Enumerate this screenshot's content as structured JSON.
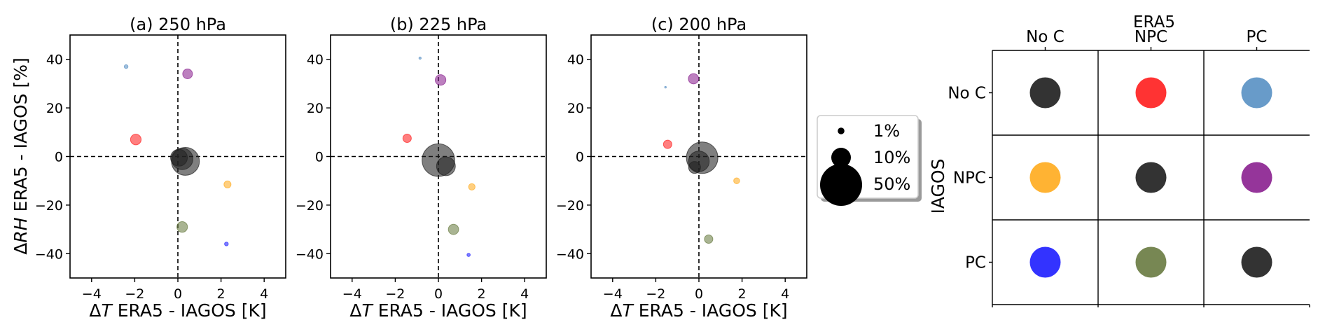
{
  "figure": {
    "ylabel_prefix": "Δ",
    "ylabel_var": "RH",
    "ylabel_rest": " ERA5 - IAGOS [%]",
    "xlabel_prefix": "Δ",
    "xlabel_var": "T",
    "xlabel_rest": " ERA5 - IAGOS [K]"
  },
  "legend": {
    "entries": [
      {
        "label": "1%",
        "percent": 1
      },
      {
        "label": "10%",
        "percent": 10
      },
      {
        "label": "50%",
        "percent": 50
      }
    ]
  },
  "matrix": {
    "top_title": "ERA5",
    "side_title": "IAGOS",
    "cols": [
      "No C",
      "NPC",
      "PC"
    ],
    "rows": [
      "No C",
      "NPC",
      "PC"
    ],
    "colors": [
      [
        "#222222",
        "#ff2222",
        "#5b92c4"
      ],
      [
        "#ffad22",
        "#222222",
        "#8c2491"
      ],
      [
        "#2222ff",
        "#6b7d44",
        "#222222"
      ]
    ]
  },
  "chart_data": [
    {
      "type": "scatter",
      "title": "(a) 250 hPa",
      "xlim": [
        -5,
        5
      ],
      "ylim": [
        -50,
        50
      ],
      "xticks": [
        -4,
        -2,
        0,
        2,
        4
      ],
      "yticks": [
        -40,
        -20,
        0,
        20,
        40
      ],
      "xtick_labels": [
        "−4",
        "−2",
        "0",
        "2",
        "4"
      ],
      "ytick_labels": [
        "−40",
        "−20",
        "0",
        "20",
        "40"
      ],
      "points": [
        {
          "x": -2.4,
          "y": 37,
          "percent": 0.4,
          "color": "#5b92c4",
          "cat": "IAGOS No C / ERA5 PC"
        },
        {
          "x": 0.45,
          "y": 34,
          "percent": 2.7,
          "color": "#8c2491",
          "cat": "IAGOS NPC / ERA5 PC"
        },
        {
          "x": -1.95,
          "y": 7,
          "percent": 3.2,
          "color": "#ff2222",
          "cat": "IAGOS No C / ERA5 NPC"
        },
        {
          "x": 0.35,
          "y": -2,
          "percent": 22,
          "color": "#222222",
          "cat": "IAGOS NPC / ERA5 NPC"
        },
        {
          "x": 0.2,
          "y": -1,
          "percent": 13,
          "color": "#222222",
          "cat": "IAGOS No C / ERA5 No C"
        },
        {
          "x": 0.05,
          "y": -0.5,
          "percent": 8,
          "color": "#222222",
          "cat": "IAGOS PC / ERA5 PC"
        },
        {
          "x": 2.3,
          "y": -11.5,
          "percent": 1.4,
          "color": "#ffad22",
          "cat": "IAGOS NPC / ERA5 No C"
        },
        {
          "x": 0.2,
          "y": -29,
          "percent": 3.2,
          "color": "#6b7d44",
          "cat": "IAGOS PC / ERA5 NPC"
        },
        {
          "x": 2.25,
          "y": -36,
          "percent": 0.4,
          "color": "#2222ff",
          "cat": "IAGOS PC / ERA5 No C"
        }
      ]
    },
    {
      "type": "scatter",
      "title": "(b) 225 hPa",
      "xlim": [
        -5,
        5
      ],
      "ylim": [
        -50,
        50
      ],
      "xticks": [
        -4,
        -2,
        0,
        2,
        4
      ],
      "yticks": [
        -40,
        -20,
        0,
        20,
        40
      ],
      "xtick_labels": [
        "−4",
        "−2",
        "0",
        "2",
        "4"
      ],
      "ytick_labels": [
        "−40",
        "−20",
        "0",
        "20",
        "40"
      ],
      "points": [
        {
          "x": -0.85,
          "y": 40.5,
          "percent": 0.15,
          "color": "#5b92c4",
          "cat": "IAGOS No C / ERA5 PC"
        },
        {
          "x": 0.1,
          "y": 31.5,
          "percent": 3.2,
          "color": "#8c2491",
          "cat": "IAGOS NPC / ERA5 PC"
        },
        {
          "x": -1.45,
          "y": 7.5,
          "percent": 2.0,
          "color": "#ff2222",
          "cat": "IAGOS No C / ERA5 NPC"
        },
        {
          "x": 0.0,
          "y": -1.5,
          "percent": 30,
          "color": "#222222",
          "cat": "IAGOS NPC / ERA5 NPC"
        },
        {
          "x": 0.35,
          "y": -4,
          "percent": 10,
          "color": "#222222",
          "cat": "IAGOS No C / ERA5 No C"
        },
        {
          "x": 1.55,
          "y": -12.5,
          "percent": 1.2,
          "color": "#ffad22",
          "cat": "IAGOS NPC / ERA5 No C"
        },
        {
          "x": 0.7,
          "y": -30,
          "percent": 3.0,
          "color": "#6b7d44",
          "cat": "IAGOS PC / ERA5 NPC"
        },
        {
          "x": 1.4,
          "y": -40.5,
          "percent": 0.3,
          "color": "#2222ff",
          "cat": "IAGOS PC / ERA5 No C"
        }
      ]
    },
    {
      "type": "scatter",
      "title": "(c) 200 hPa",
      "xlim": [
        -5,
        5
      ],
      "ylim": [
        -50,
        50
      ],
      "xticks": [
        -4,
        -2,
        0,
        2,
        4
      ],
      "yticks": [
        -40,
        -20,
        0,
        20,
        40
      ],
      "xtick_labels": [
        "−4",
        "−2",
        "0",
        "2",
        "4"
      ],
      "ytick_labels": [
        "−40",
        "−20",
        "0",
        "20",
        "40"
      ],
      "points": [
        {
          "x": -1.55,
          "y": 28.5,
          "percent": 0.08,
          "color": "#5b92c4",
          "cat": "IAGOS No C / ERA5 PC"
        },
        {
          "x": -0.25,
          "y": 32,
          "percent": 3.0,
          "color": "#8c2491",
          "cat": "IAGOS NPC / ERA5 PC"
        },
        {
          "x": -1.45,
          "y": 5,
          "percent": 2.0,
          "color": "#ff2222",
          "cat": "IAGOS No C / ERA5 NPC"
        },
        {
          "x": 0.15,
          "y": -0.5,
          "percent": 28,
          "color": "#222222",
          "cat": "IAGOS NPC / ERA5 NPC"
        },
        {
          "x": 0.0,
          "y": -2,
          "percent": 12,
          "color": "#222222",
          "cat": "IAGOS No C / ERA5 No C"
        },
        {
          "x": -0.2,
          "y": -4.5,
          "percent": 4,
          "color": "#222222",
          "cat": "IAGOS PC / ERA5 PC"
        },
        {
          "x": 1.75,
          "y": -10,
          "percent": 1.0,
          "color": "#ffad22",
          "cat": "IAGOS NPC / ERA5 No C"
        },
        {
          "x": 0.45,
          "y": -34,
          "percent": 2.0,
          "color": "#6b7d44",
          "cat": "IAGOS PC / ERA5 NPC"
        }
      ]
    }
  ]
}
